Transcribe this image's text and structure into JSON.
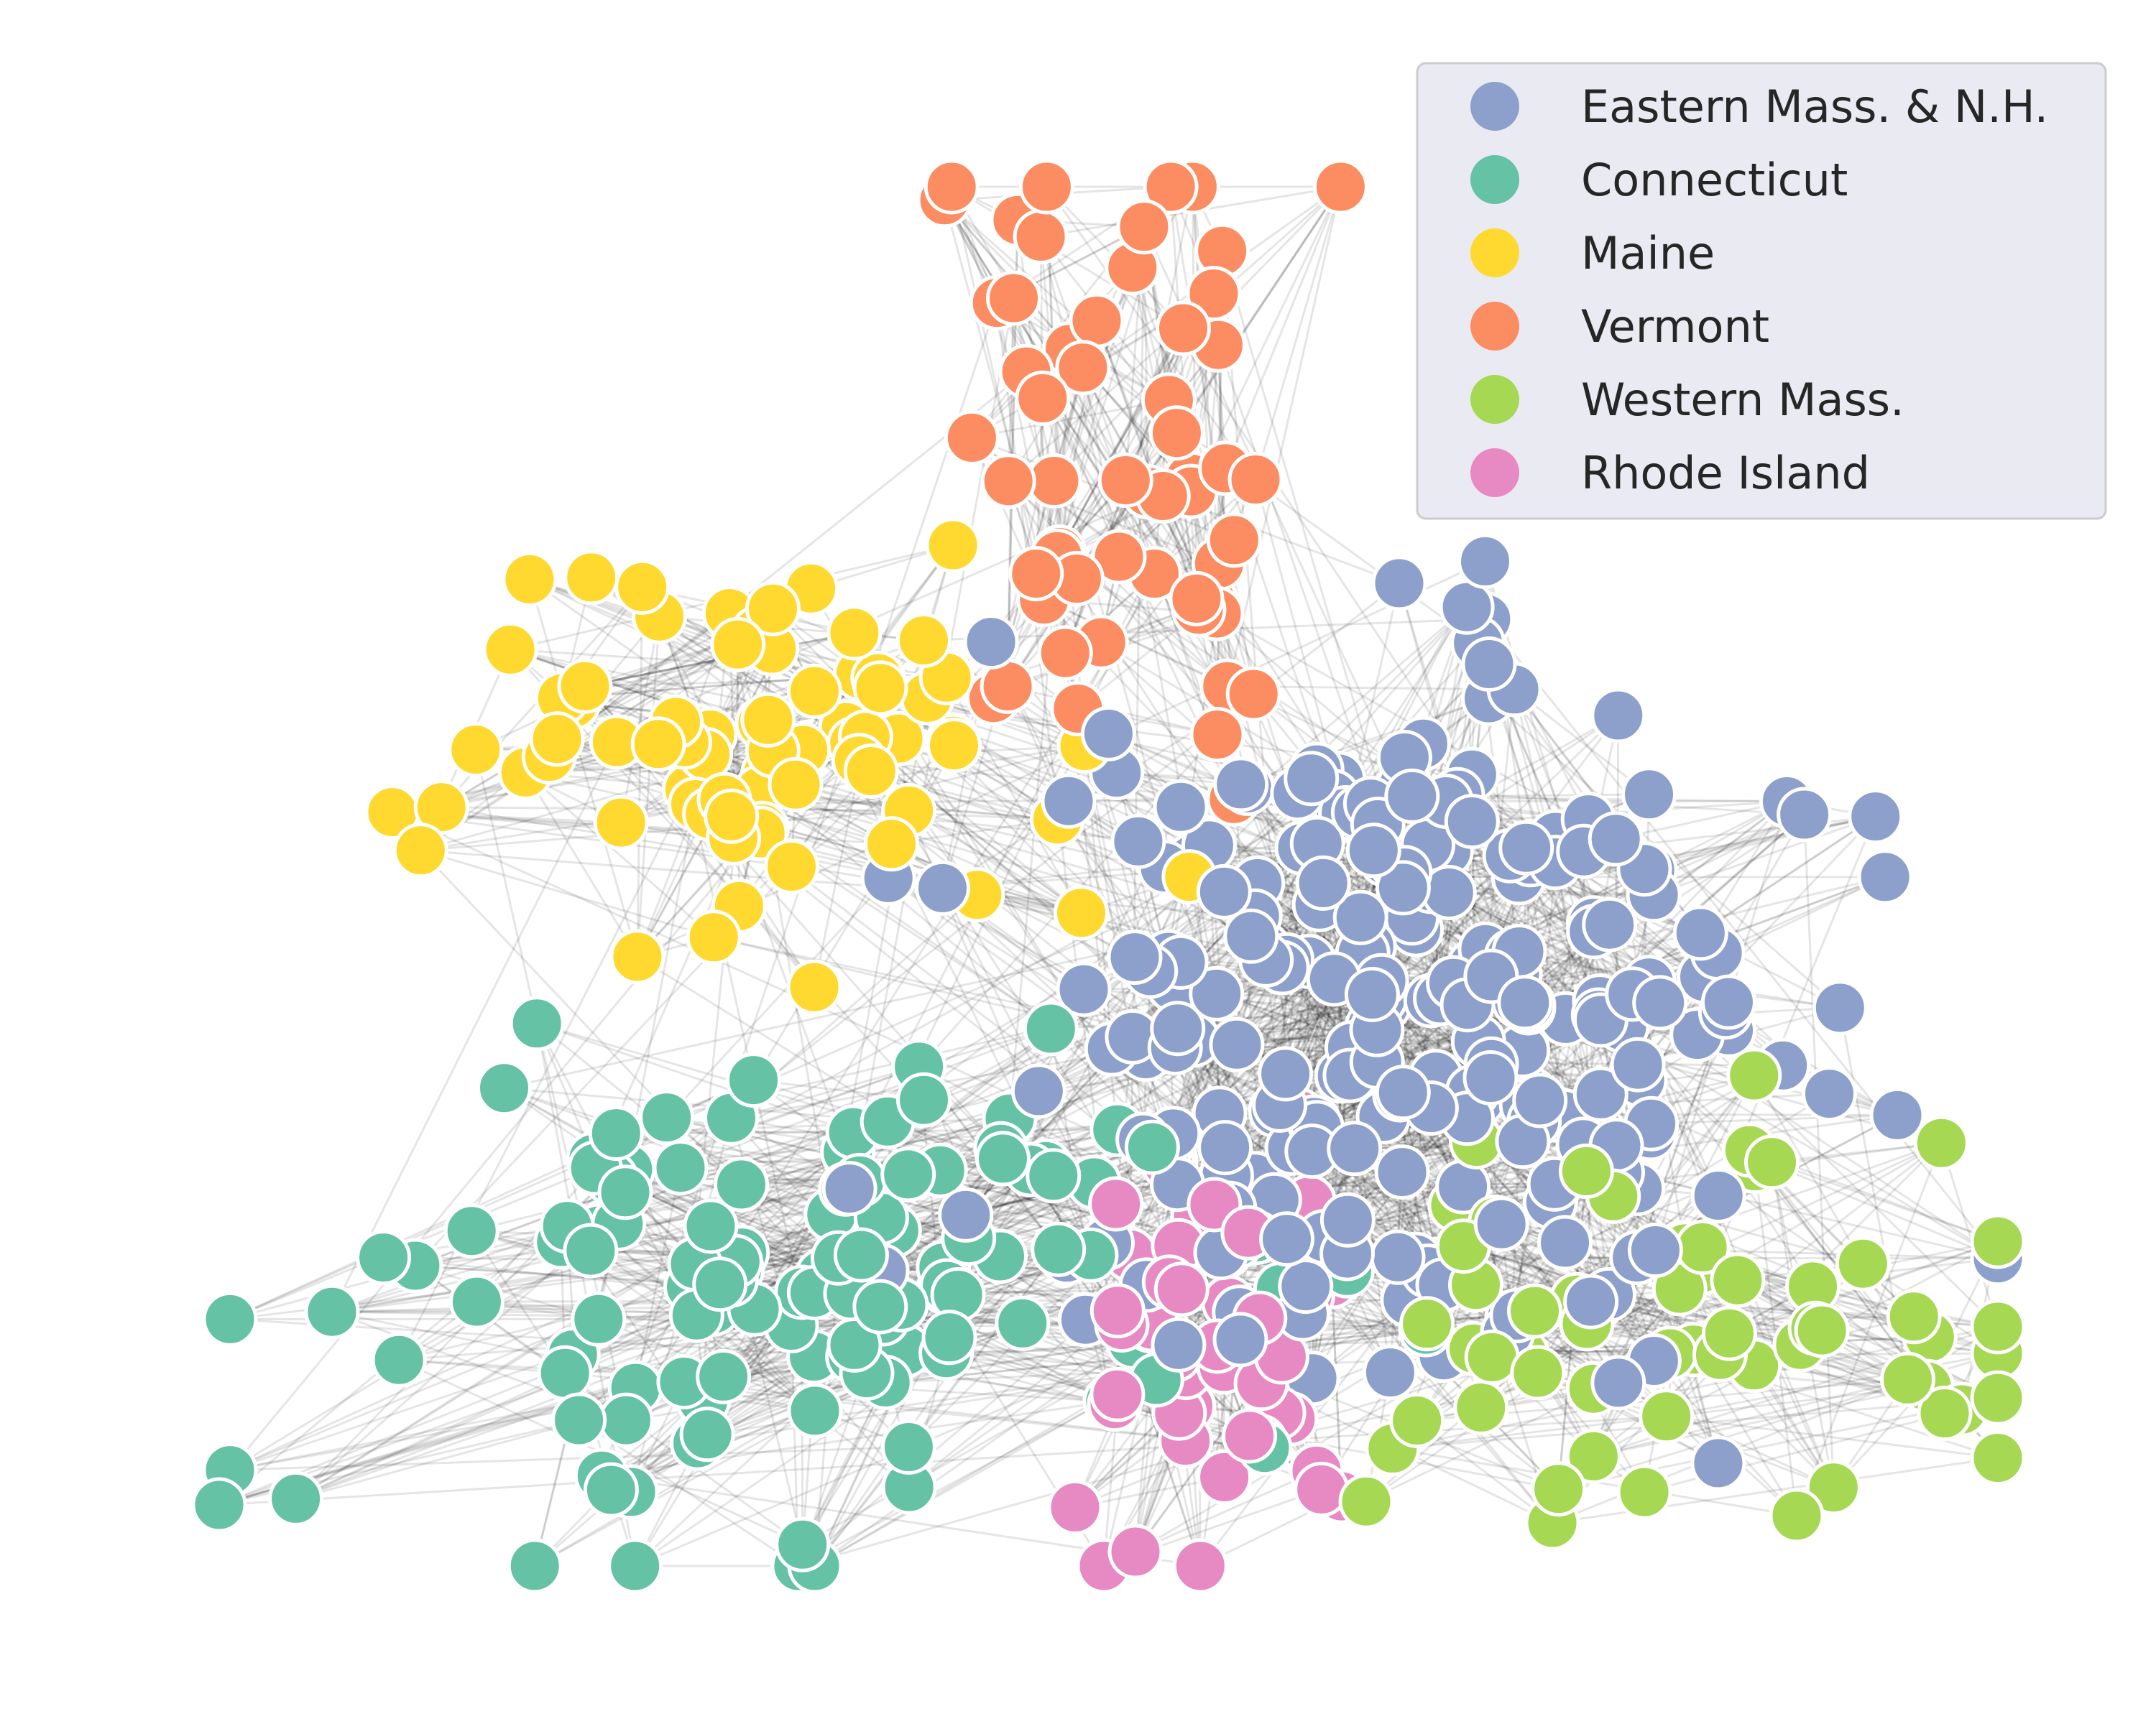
{
  "legend": {
    "entries": [
      {
        "label": "Eastern Mass. & N.H.",
        "color": "#8da0cb"
      },
      {
        "label": "Connecticut",
        "color": "#66c2a5"
      },
      {
        "label": "Maine",
        "color": "#ffd92f"
      },
      {
        "label": "Vermont",
        "color": "#fc8d62"
      },
      {
        "label": "Western Mass.",
        "color": "#a6d854"
      },
      {
        "label": "Rhode Island",
        "color": "#e78ac3"
      }
    ]
  },
  "graph": {
    "node_color": "state cluster",
    "edge_color": "#000000"
  }
}
